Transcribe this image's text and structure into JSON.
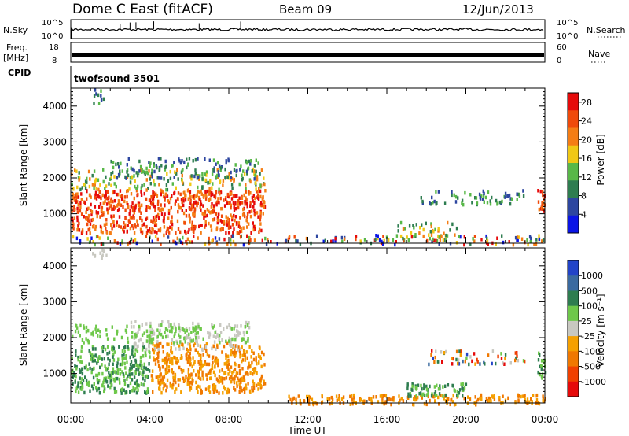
{
  "header": {
    "station": "Dome C East (fitACF)",
    "beam": "Beam 09",
    "date": "12/Jun/2013"
  },
  "params": {
    "nsky_label": "N.Sky",
    "nsky_ticks": [
      "10^5",
      "10^0"
    ],
    "nsearch_label": "N.Search",
    "nsearch_ticks": [
      "10^5",
      "10^0"
    ],
    "freq_label": "Freq.",
    "freq_unit": "[MHz]",
    "freq_ticks": [
      "18",
      "8"
    ],
    "nave_label": "Nave",
    "nave_ticks": [
      "60",
      "0"
    ],
    "cpid_label": "CPID",
    "cpid_value": "twofsound 3501"
  },
  "colors": {
    "power": [
      "#0a14e6",
      "#2d46a0",
      "#2e7d50",
      "#58b848",
      "#f0c814",
      "#f57d14",
      "#f04a0a",
      "#e60a0a"
    ],
    "velocity": [
      "#2244c8",
      "#3a6aa0",
      "#2e7d50",
      "#6ec84a",
      "#c8c8c0",
      "#f5a000",
      "#f07800",
      "#f04000",
      "#e60a0a"
    ]
  },
  "chart_data": [
    {
      "type": "heatmap",
      "panel": "power",
      "ylabel": "Slant Range [km]",
      "xlabel": "Time UT",
      "xlim": [
        "00:00",
        "24:00"
      ],
      "ylim": [
        180,
        4500
      ],
      "x_ticks": [
        "00:00",
        "04:00",
        "08:00",
        "12:00",
        "16:00",
        "20:00",
        "00:00"
      ],
      "y_ticks": [
        1000,
        2000,
        3000,
        4000
      ],
      "colorbar": {
        "label": "Power [dB]",
        "ticks": [
          4,
          8,
          12,
          16,
          20,
          24,
          28
        ],
        "range": [
          0,
          30
        ]
      },
      "regions": [
        {
          "t": [
            0.0,
            9.8
          ],
          "r": [
            500,
            1700
          ],
          "level": "high"
        },
        {
          "t": [
            0.0,
            9.8
          ],
          "r": [
            1700,
            2300
          ],
          "level": "mid"
        },
        {
          "t": [
            2.0,
            9.5
          ],
          "r": [
            2000,
            2600
          ],
          "level": "low"
        },
        {
          "t": [
            0.0,
            24.0
          ],
          "r": [
            180,
            450
          ],
          "level": "mixed"
        },
        {
          "t": [
            16.5,
            19.5
          ],
          "r": [
            300,
            800
          ],
          "level": "mid"
        },
        {
          "t": [
            17.5,
            23.0
          ],
          "r": [
            1300,
            1700
          ],
          "level": "low"
        },
        {
          "t": [
            23.6,
            24.0
          ],
          "r": [
            900,
            1700
          ],
          "level": "high"
        },
        {
          "t": [
            1.0,
            1.8
          ],
          "r": [
            4100,
            4500
          ],
          "level": "low"
        }
      ]
    },
    {
      "type": "heatmap",
      "panel": "velocity",
      "ylabel": "Slant Range [km]",
      "xlabel": "Time UT",
      "xlim": [
        "00:00",
        "24:00"
      ],
      "ylim": [
        180,
        4500
      ],
      "x_ticks": [
        "00:00",
        "04:00",
        "08:00",
        "12:00",
        "16:00",
        "20:00",
        "00:00"
      ],
      "y_ticks": [
        1000,
        2000,
        3000,
        4000
      ],
      "colorbar": {
        "label": "Velocity [m s⁻¹]",
        "ticks": [
          1000,
          500,
          100,
          25,
          -25,
          -100,
          -500,
          -1000
        ]
      },
      "regions": [
        {
          "t": [
            0.0,
            4.0
          ],
          "r": [
            500,
            1800
          ],
          "level": "green"
        },
        {
          "t": [
            4.0,
            9.8
          ],
          "r": [
            500,
            1900
          ],
          "level": "orange"
        },
        {
          "t": [
            3.0,
            9.0
          ],
          "r": [
            1700,
            2500
          ],
          "level": "grey"
        },
        {
          "t": [
            0.0,
            9.0
          ],
          "r": [
            1900,
            2400
          ],
          "level": "lightgreen"
        },
        {
          "t": [
            11.0,
            24.0
          ],
          "r": [
            180,
            450
          ],
          "level": "orange"
        },
        {
          "t": [
            17.0,
            20.0
          ],
          "r": [
            400,
            800
          ],
          "level": "green"
        },
        {
          "t": [
            18.0,
            23.0
          ],
          "r": [
            1300,
            1700
          ],
          "level": "mixed"
        },
        {
          "t": [
            23.6,
            24.0
          ],
          "r": [
            900,
            1700
          ],
          "level": "green"
        },
        {
          "t": [
            1.0,
            1.8
          ],
          "r": [
            4100,
            4500
          ],
          "level": "grey"
        }
      ]
    }
  ]
}
